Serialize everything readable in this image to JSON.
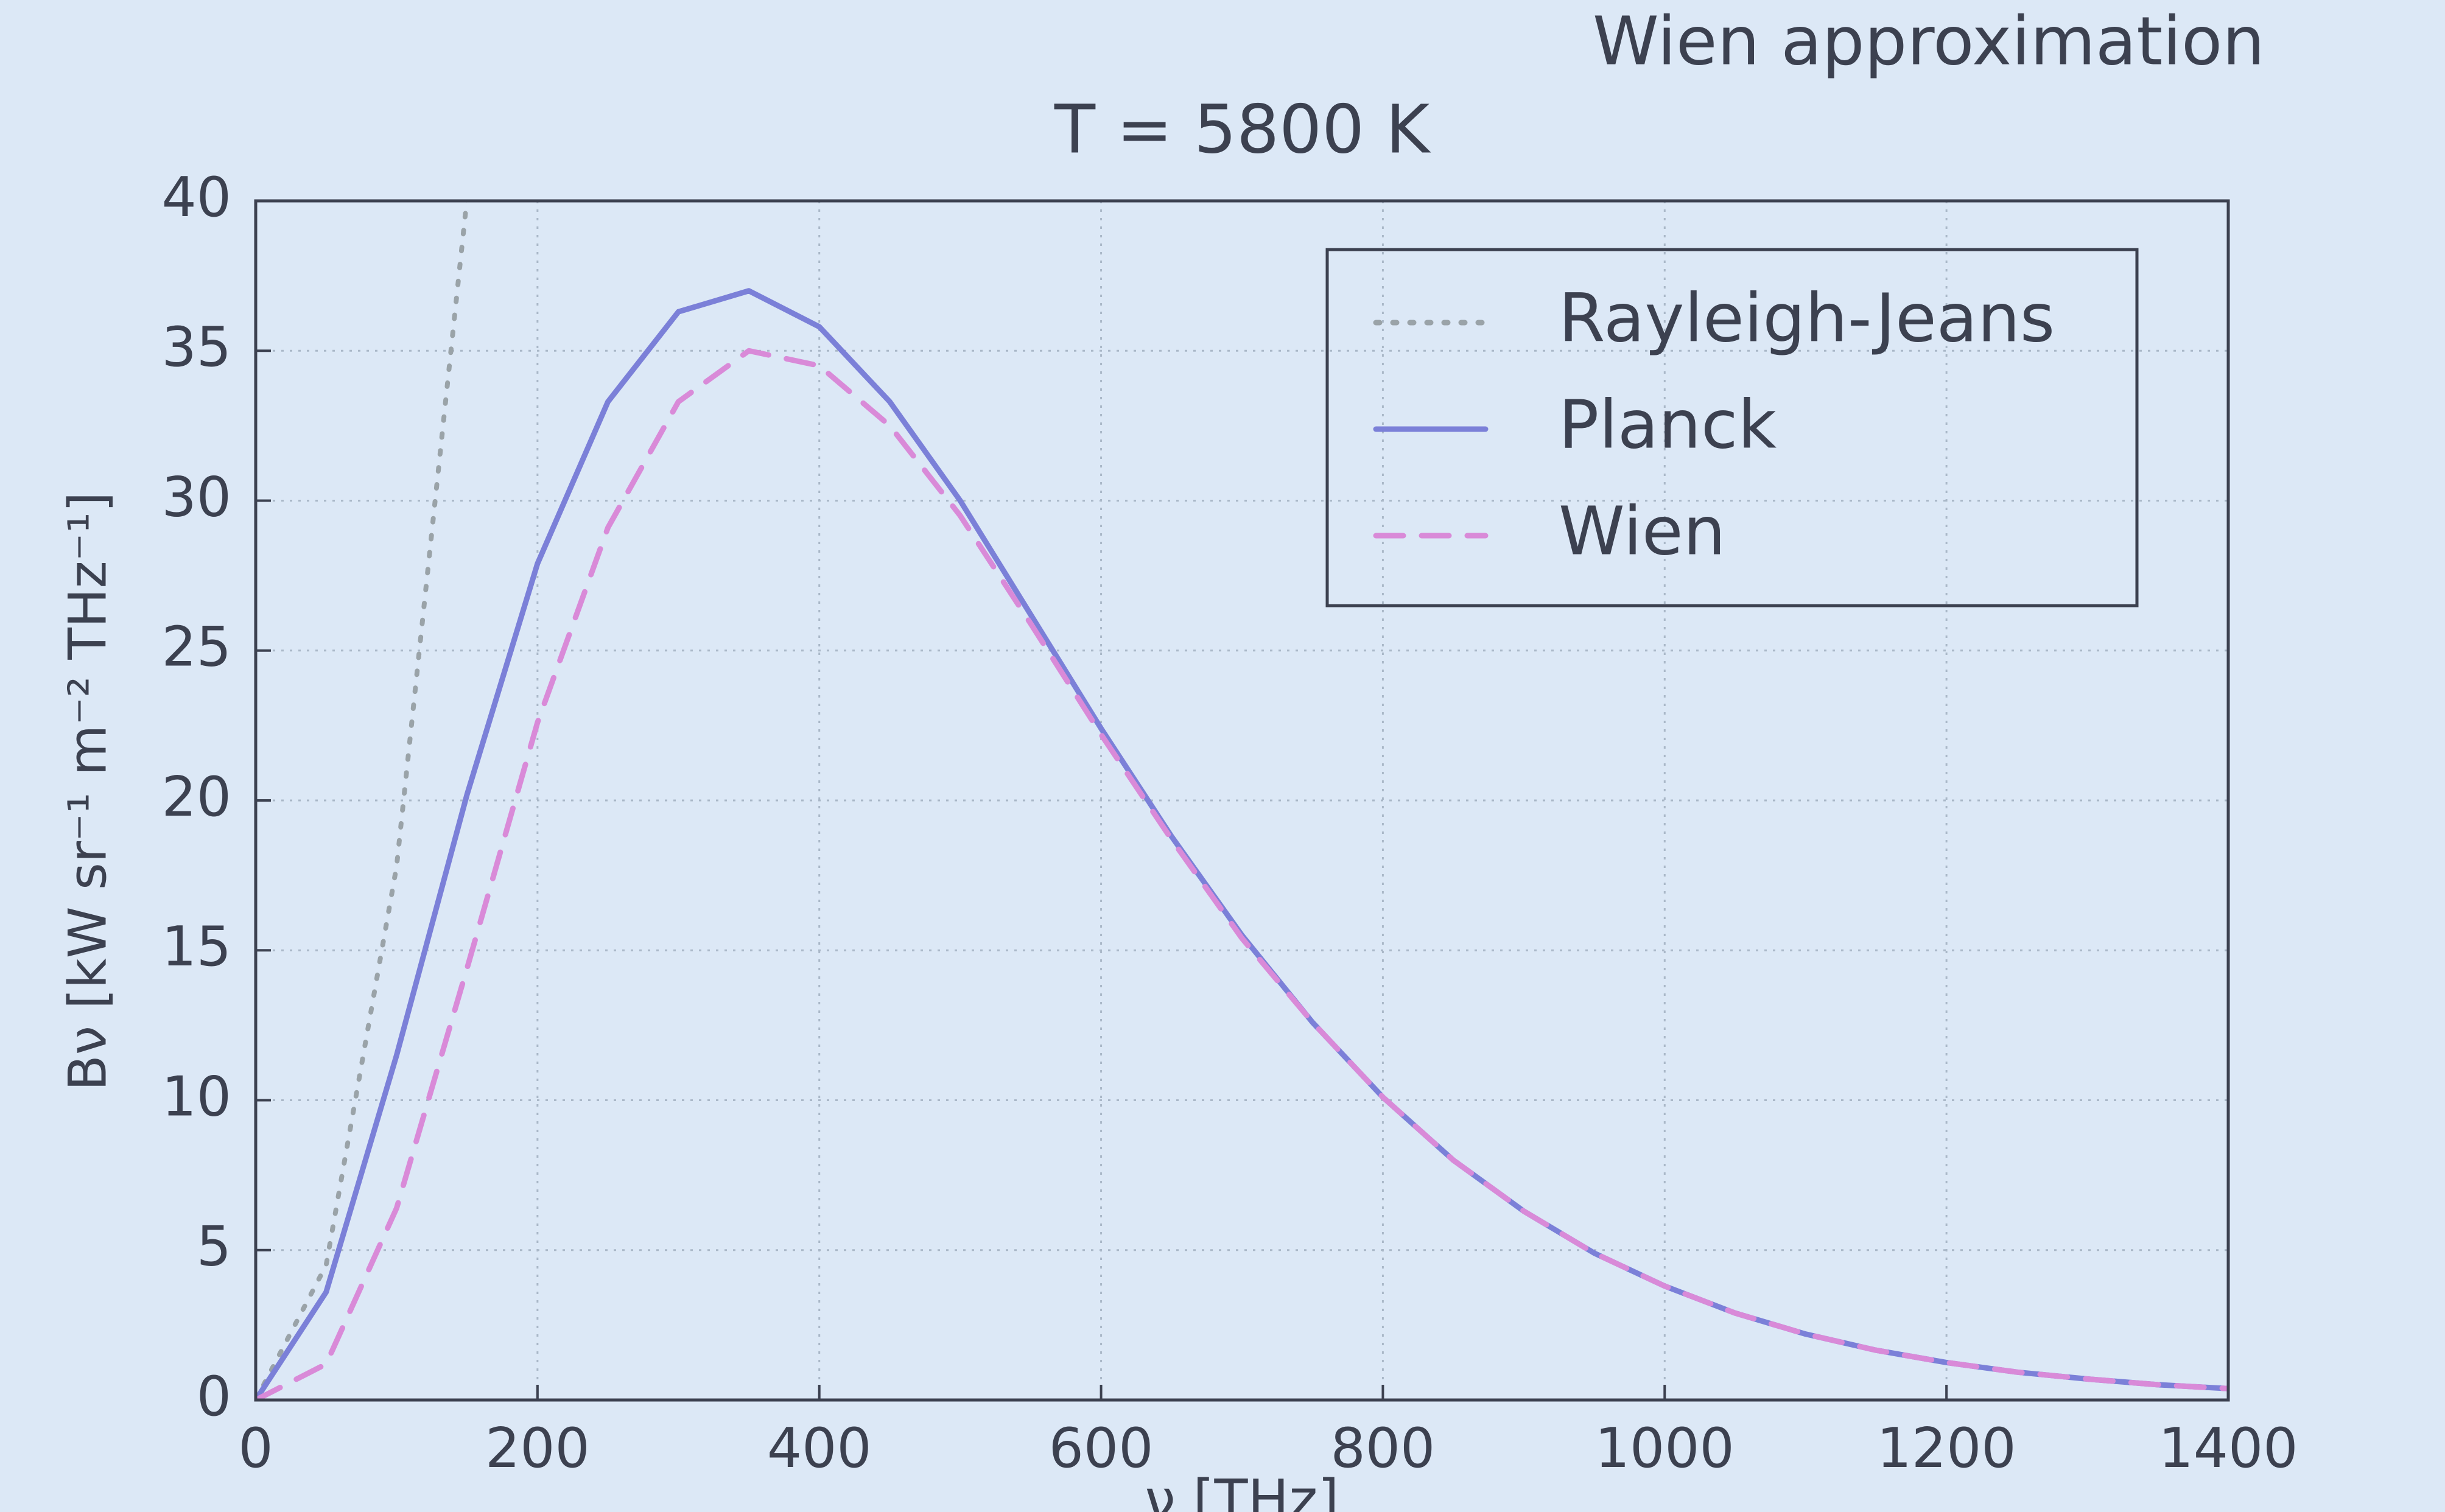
{
  "heading": "Wien approximation",
  "chart_data": {
    "type": "line",
    "title": "T = 5800 K",
    "xlabel": "ν [THz]",
    "ylabel": "Bν [kW sr⁻¹ m⁻² THz⁻¹]",
    "x": [
      0,
      50,
      100,
      150,
      200,
      250,
      300,
      350,
      400,
      450,
      500,
      550,
      600,
      650,
      700,
      750,
      800,
      850,
      900,
      950,
      1000,
      1050,
      1100,
      1150,
      1200,
      1250,
      1300,
      1350,
      1400
    ],
    "series": [
      {
        "name": "Rayleigh-Jeans",
        "color": "#9aa3a8",
        "style": "dotted",
        "values": [
          0,
          4.5,
          17.8,
          40.1,
          null,
          null,
          null,
          null,
          null,
          null,
          null,
          null,
          null,
          null,
          null,
          null,
          null,
          null,
          null,
          null,
          null,
          null,
          null,
          null,
          null,
          null,
          null,
          null,
          null
        ]
      },
      {
        "name": "Planck",
        "color": "#7b80d8",
        "style": "solid",
        "values": [
          0,
          3.6,
          11.5,
          20.2,
          27.9,
          33.3,
          36.3,
          37.0,
          35.8,
          33.3,
          30.0,
          26.2,
          22.4,
          18.8,
          15.5,
          12.6,
          10.1,
          8.0,
          6.3,
          4.9,
          3.8,
          2.9,
          2.2,
          1.66,
          1.25,
          0.93,
          0.7,
          0.51,
          0.38
        ]
      },
      {
        "name": "Wien",
        "color": "#d98ad8",
        "style": "dashed",
        "values": [
          0,
          1.2,
          6.4,
          14.4,
          22.6,
          29.1,
          33.3,
          35.0,
          34.5,
          32.5,
          29.5,
          25.9,
          22.2,
          18.7,
          15.4,
          12.6,
          10.1,
          8.0,
          6.3,
          4.9,
          3.8,
          2.9,
          2.2,
          1.66,
          1.25,
          0.93,
          0.7,
          0.51,
          0.38
        ]
      }
    ],
    "xlim": [
      0,
      1400
    ],
    "xticks": [
      0,
      200,
      400,
      600,
      800,
      1000,
      1200,
      1400
    ],
    "ylim": [
      0,
      40
    ],
    "yticks": [
      0,
      5,
      10,
      15,
      20,
      25,
      30,
      35,
      40
    ],
    "grid": true,
    "legend": "upper right"
  }
}
